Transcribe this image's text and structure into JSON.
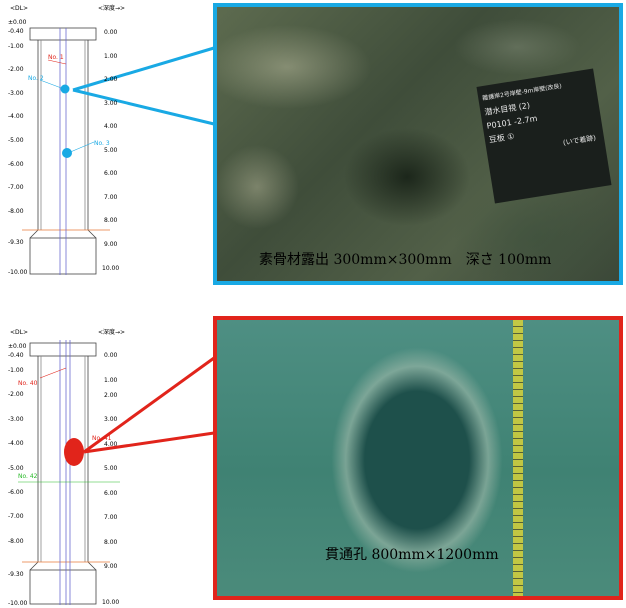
{
  "upper_figure": {
    "elevation_header": "<DL>",
    "depth_header": "<深度→>",
    "elevations": [
      "±0.00",
      "-0.40",
      "-1.00",
      "-2.00",
      "-3.00",
      "-4.00",
      "-5.00",
      "-6.00",
      "-7.00",
      "-8.00",
      "-9.30",
      "-10.00"
    ],
    "depths": [
      "0.00",
      "1.00",
      "2.00",
      "3.00",
      "4.00",
      "5.00",
      "6.00",
      "7.00",
      "8.00",
      "9.00",
      "10.00"
    ],
    "markers": [
      {
        "label": "No. 1",
        "color": "#e1241b"
      },
      {
        "label": "No. 2",
        "color": "#19a9e4"
      },
      {
        "label": "No. 3",
        "color": "#19a9e4"
      }
    ],
    "caption": "素骨材露出 300mm×300mm　深さ 100mm",
    "board_lines": [
      "離護岸2号岸壁-9m岸壁(改良)",
      "潜水目視 (2)",
      "P0101 -2.7m",
      "豆板 ①",
      "(いで着跡)"
    ],
    "accent_color": "#19a9e4"
  },
  "lower_figure": {
    "elevation_header": "<DL>",
    "depth_header": "<深度→>",
    "elevations": [
      "±0.00",
      "-0.40",
      "-1.00",
      "-2.00",
      "-3.00",
      "-4.00",
      "-5.00",
      "-6.00",
      "-7.00",
      "-8.00",
      "-9.30",
      "-10.00"
    ],
    "depths": [
      "0.00",
      "1.00",
      "2.00",
      "3.00",
      "4.00",
      "5.00",
      "6.00",
      "7.00",
      "8.00",
      "9.00",
      "10.00"
    ],
    "markers": [
      {
        "label": "No. 40",
        "color": "#e1241b"
      },
      {
        "label": "No. 41",
        "color": "#e1241b"
      },
      {
        "label": "No. 42",
        "color": "#28b928"
      }
    ],
    "caption": "貫通孔 800mm×1200mm",
    "accent_color": "#e1241b"
  }
}
